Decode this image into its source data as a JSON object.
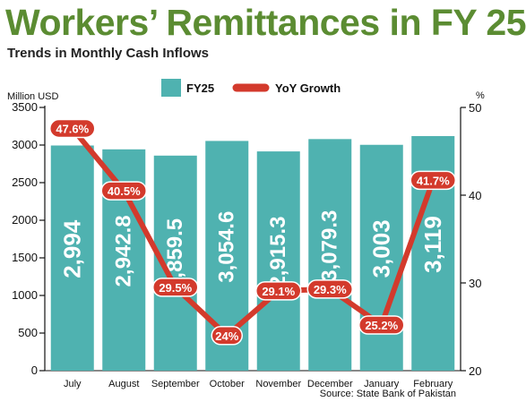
{
  "chart_data": {
    "type": "bar",
    "title": "Workers’ Remittances in FY 25",
    "subtitle": "Trends in Monthly Cash Inflows",
    "ylabel_left": "Million USD",
    "ylabel_right": "%",
    "categories": [
      "July",
      "August",
      "September",
      "October",
      "November",
      "December",
      "January",
      "February"
    ],
    "series": [
      {
        "name": "FY25",
        "type": "bar",
        "axis": "left",
        "color": "#4fb2b0",
        "values": [
          2994,
          2942.8,
          2859.5,
          3054.6,
          2915.3,
          3079.3,
          3003,
          3119
        ],
        "labels": [
          "2,994",
          "2,942.8",
          "2,859.5",
          "3,054.6",
          "2,915.3",
          "3,079.3",
          "3,003",
          "3,119"
        ]
      },
      {
        "name": "YoY Growth",
        "type": "line",
        "axis": "right",
        "color": "#d33a2c",
        "values": [
          47.6,
          40.5,
          29.5,
          24,
          29.1,
          29.3,
          25.2,
          41.7
        ],
        "labels": [
          "47.6%",
          "40.5%",
          "29.5%",
          "24%",
          "29.1%",
          "29.3%",
          "25.2%",
          "41.7%"
        ]
      }
    ],
    "ylim_left": [
      0,
      3500
    ],
    "yticks_left": [
      0,
      500,
      1000,
      1500,
      2000,
      2500,
      3000,
      3500
    ],
    "ylim_right": [
      20,
      50
    ],
    "yticks_right": [
      20,
      30,
      40,
      50
    ],
    "legend_position": "top-center",
    "grid": false,
    "source": "Source: State Bank of Pakistan"
  }
}
